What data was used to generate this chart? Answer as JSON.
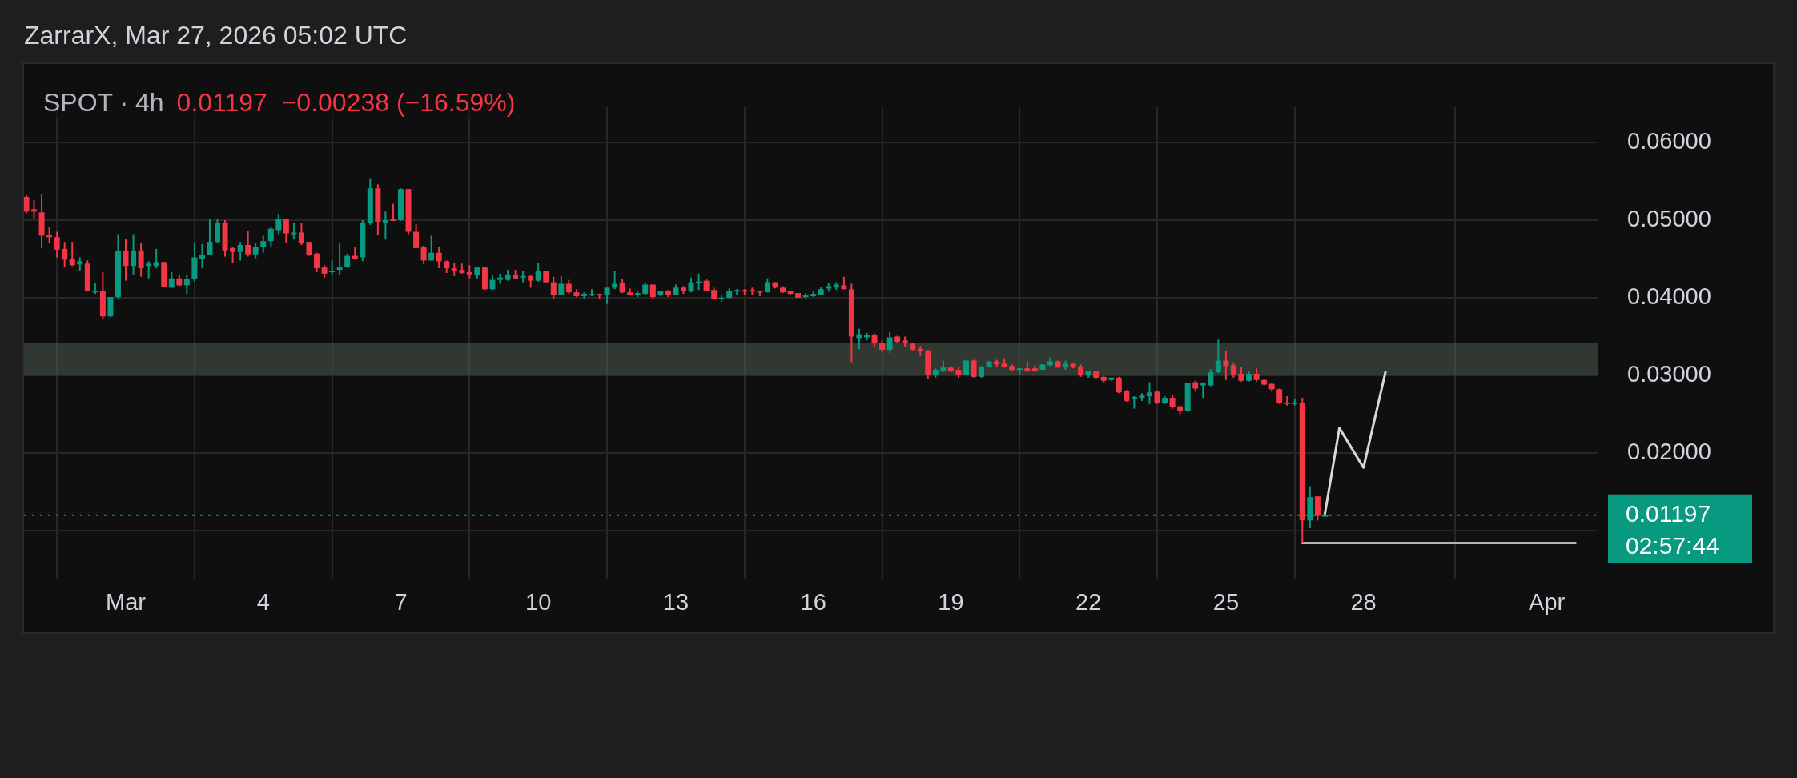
{
  "chart_data": {
    "type": "candlestick",
    "title": "SPOT · 4h",
    "subtitle": "0.01197  −0.00238 (−16.59%)",
    "annotations": [
      "ZarrarX, Mar 27, 2026 05:02 UTC",
      "02:57:44"
    ],
    "xlim": [
      "2026-02-26T18:45",
      "2026-04-02T03:00"
    ],
    "xticks": [
      {
        "value": "2026-03-01",
        "label": "Mar"
      },
      {
        "value": "2026-03-04",
        "label": "4"
      },
      {
        "value": "2026-03-07",
        "label": "7"
      },
      {
        "value": "2026-03-10",
        "label": "10"
      },
      {
        "value": "2026-03-13",
        "label": "13"
      },
      {
        "value": "2026-03-16",
        "label": "16"
      },
      {
        "value": "2026-03-19",
        "label": "19"
      },
      {
        "value": "2026-03-22",
        "label": "22"
      },
      {
        "value": "2026-03-25",
        "label": "25"
      },
      {
        "value": "2026-03-28",
        "label": "28"
      },
      {
        "value": "2026-04-01",
        "label": "Apr"
      }
    ],
    "ylim": [
      0.0038,
      0.0646
    ],
    "yticks": [
      {
        "value": 0.01,
        "label": null
      },
      {
        "value": 0.02,
        "label": "0.02000"
      },
      {
        "value": 0.03,
        "label": "0.03000"
      },
      {
        "value": 0.04,
        "label": "0.04000"
      },
      {
        "value": 0.05,
        "label": "0.05000"
      },
      {
        "value": 0.06,
        "label": "0.06000"
      }
    ],
    "grid": true,
    "ref_lines": [
      {
        "axis": "y",
        "value": 0.01197,
        "label": "0.01197",
        "color": "#089981",
        "line_style": "dotted"
      }
    ],
    "bands": [
      {
        "axis": "y",
        "from": 0.03,
        "to": 0.0342,
        "color": "#5a6b5a"
      }
    ],
    "series": [
      {
        "colors": [
          "#f23645",
          "#f23645",
          "#f23645",
          "#f23645",
          "#f23645",
          "#f23645",
          "#f23645",
          "#089981",
          "#f23645",
          "#089981",
          "#f23645",
          "#089981",
          "#089981",
          "#f23645",
          "#089981",
          "#f23645",
          "#089981",
          "#089981",
          "#f23645",
          "#089981",
          "#f23645",
          "#089981",
          "#089981",
          "#089981",
          "#089981",
          "#089981",
          "#f23645",
          "#f23645",
          "#089981",
          "#f23645",
          "#089981",
          "#089981",
          "#089981",
          "#089981",
          "#f23645",
          "#089981",
          "#f23645",
          "#f23645",
          "#f23645",
          "#f23645",
          "#089981",
          "#089981",
          "#089981",
          "#f23645",
          "#089981",
          "#089981",
          "#f23645",
          "#089981",
          "#f23645",
          "#089981",
          "#f23645",
          "#f23645",
          "#f23645",
          "#089981",
          "#f23645",
          "#f23645",
          "#f23645",
          "#f23645",
          "#f23645",
          "#089981",
          "#f23645",
          "#089981",
          "#089981",
          "#089981",
          "#f23645",
          "#089981",
          "#f23645",
          "#089981",
          "#f23645",
          "#f23645",
          "#089981",
          "#f23645",
          "#f23645",
          "#089981",
          "#089981",
          "#f23645",
          "#089981",
          "#089981",
          "#f23645",
          "#f23645",
          "#089981",
          "#089981",
          "#f23645",
          "#089981",
          "#f23645",
          "#089981",
          "#f23645",
          "#089981",
          "#089981",
          "#f23645",
          "#f23645",
          "#089981",
          "#089981",
          "#089981",
          "#f23645",
          "#f23645",
          "#f23645",
          "#089981",
          "#f23645",
          "#f23645",
          "#f23645",
          "#f23645",
          "#089981",
          "#089981",
          "#089981",
          "#089981",
          "#089981",
          "#f23645",
          "#f23645",
          "#089981",
          "#089981",
          "#f23645",
          "#f23645",
          "#089981",
          "#f23645",
          "#f23645",
          "#f23645",
          "#f23645",
          "#f23645",
          "#089981",
          "#089981",
          "#f23645",
          "#f23645",
          "#089981",
          "#f23645",
          "#089981",
          "#089981",
          "#f23645",
          "#f23645",
          "#f23645",
          "#089981",
          "#f23645",
          "#f23645",
          "#089981",
          "#089981",
          "#f23645",
          "#089981",
          "#f23645",
          "#f23645",
          "#089981",
          "#f23645",
          "#f23645",
          "#089981",
          "#f23645",
          "#f23645",
          "#089981",
          "#089981",
          "#089981",
          "#f23645",
          "#089981",
          "#f23645",
          "#f23645",
          "#089981",
          "#f23645",
          "#089981",
          "#089981",
          "#089981",
          "#f23645",
          "#f23645",
          "#f23645",
          "#089981",
          "#f23645",
          "#f23645",
          "#f23645",
          "#f23645",
          "#f23645",
          "#089981",
          "#f23645",
          "#089981",
          "#f23645",
          "#089981"
        ],
        "x": [
          "2026-02-26T20:00",
          "2026-02-27T00:00",
          "2026-02-27T04:00",
          "2026-02-27T08:00",
          "2026-02-27T12:00",
          "2026-02-27T16:00",
          "2026-02-27T20:00",
          "2026-02-28T00:00",
          "2026-02-28T04:00",
          "2026-02-28T08:00",
          "2026-02-28T12:00",
          "2026-02-28T16:00",
          "2026-02-28T20:00",
          "2026-03-01T00:00",
          "2026-03-01T04:00",
          "2026-03-01T08:00",
          "2026-03-01T12:00",
          "2026-03-01T16:00",
          "2026-03-01T20:00",
          "2026-03-02T00:00",
          "2026-03-02T04:00",
          "2026-03-02T08:00",
          "2026-03-02T12:00",
          "2026-03-02T16:00",
          "2026-03-02T20:00",
          "2026-03-03T00:00",
          "2026-03-03T04:00",
          "2026-03-03T08:00",
          "2026-03-03T12:00",
          "2026-03-03T16:00",
          "2026-03-03T20:00",
          "2026-03-04T00:00",
          "2026-03-04T04:00",
          "2026-03-04T08:00",
          "2026-03-04T12:00",
          "2026-03-04T16:00",
          "2026-03-04T20:00",
          "2026-03-05T00:00",
          "2026-03-05T04:00",
          "2026-03-05T08:00",
          "2026-03-05T12:00",
          "2026-03-05T16:00",
          "2026-03-05T20:00",
          "2026-03-06T00:00",
          "2026-03-06T04:00",
          "2026-03-06T08:00",
          "2026-03-06T12:00",
          "2026-03-06T16:00",
          "2026-03-06T20:00",
          "2026-03-07T00:00",
          "2026-03-07T04:00",
          "2026-03-07T08:00",
          "2026-03-07T12:00",
          "2026-03-07T16:00",
          "2026-03-07T20:00",
          "2026-03-08T00:00",
          "2026-03-08T04:00",
          "2026-03-08T08:00",
          "2026-03-08T12:00",
          "2026-03-08T16:00",
          "2026-03-08T20:00",
          "2026-03-09T00:00",
          "2026-03-09T04:00",
          "2026-03-09T08:00",
          "2026-03-09T12:00",
          "2026-03-09T16:00",
          "2026-03-09T20:00",
          "2026-03-10T00:00",
          "2026-03-10T04:00",
          "2026-03-10T08:00",
          "2026-03-10T12:00",
          "2026-03-10T16:00",
          "2026-03-10T20:00",
          "2026-03-11T00:00",
          "2026-03-11T04:00",
          "2026-03-11T08:00",
          "2026-03-11T12:00",
          "2026-03-11T16:00",
          "2026-03-11T20:00",
          "2026-03-12T00:00",
          "2026-03-12T04:00",
          "2026-03-12T08:00",
          "2026-03-12T12:00",
          "2026-03-12T16:00",
          "2026-03-12T20:00",
          "2026-03-13T00:00",
          "2026-03-13T04:00",
          "2026-03-13T08:00",
          "2026-03-13T12:00",
          "2026-03-13T16:00",
          "2026-03-13T20:00",
          "2026-03-14T00:00",
          "2026-03-14T04:00",
          "2026-03-14T08:00",
          "2026-03-14T12:00",
          "2026-03-14T16:00",
          "2026-03-14T20:00",
          "2026-03-15T00:00",
          "2026-03-15T04:00",
          "2026-03-15T08:00",
          "2026-03-15T12:00",
          "2026-03-15T16:00",
          "2026-03-15T20:00",
          "2026-03-16T00:00",
          "2026-03-16T04:00",
          "2026-03-16T08:00",
          "2026-03-16T12:00",
          "2026-03-16T16:00",
          "2026-03-16T20:00",
          "2026-03-17T00:00",
          "2026-03-17T04:00",
          "2026-03-17T08:00",
          "2026-03-17T12:00",
          "2026-03-17T16:00",
          "2026-03-17T20:00",
          "2026-03-18T00:00",
          "2026-03-18T04:00",
          "2026-03-18T08:00",
          "2026-03-18T12:00",
          "2026-03-18T16:00",
          "2026-03-18T20:00",
          "2026-03-19T00:00",
          "2026-03-19T04:00",
          "2026-03-19T08:00",
          "2026-03-19T12:00",
          "2026-03-19T16:00",
          "2026-03-19T20:00",
          "2026-03-20T00:00",
          "2026-03-20T04:00",
          "2026-03-20T08:00",
          "2026-03-20T12:00",
          "2026-03-20T16:00",
          "2026-03-20T20:00",
          "2026-03-21T00:00",
          "2026-03-21T04:00",
          "2026-03-21T08:00",
          "2026-03-21T12:00",
          "2026-03-21T16:00",
          "2026-03-21T20:00",
          "2026-03-22T00:00",
          "2026-03-22T04:00",
          "2026-03-22T08:00",
          "2026-03-22T12:00",
          "2026-03-22T16:00",
          "2026-03-22T20:00",
          "2026-03-23T00:00",
          "2026-03-23T04:00",
          "2026-03-23T08:00",
          "2026-03-23T12:00",
          "2026-03-23T16:00",
          "2026-03-23T20:00",
          "2026-03-24T00:00",
          "2026-03-24T04:00",
          "2026-03-24T08:00",
          "2026-03-24T12:00",
          "2026-03-24T16:00",
          "2026-03-24T20:00",
          "2026-03-25T00:00",
          "2026-03-25T04:00",
          "2026-03-25T08:00",
          "2026-03-25T12:00",
          "2026-03-25T16:00",
          "2026-03-25T20:00",
          "2026-03-26T00:00",
          "2026-03-26T04:00",
          "2026-03-26T08:00",
          "2026-03-26T12:00",
          "2026-03-26T16:00",
          "2026-03-26T20:00",
          "2026-03-27T00:00",
          "2026-03-27T04:00"
        ],
        "ohlc": [
          [
            0.053,
            0.0532,
            0.0509,
            0.0511
          ],
          [
            0.0514,
            0.0526,
            0.0501,
            0.0511
          ],
          [
            0.051,
            0.0534,
            0.0464,
            0.048
          ],
          [
            0.0481,
            0.0491,
            0.047,
            0.0478
          ],
          [
            0.0478,
            0.0485,
            0.0452,
            0.0462
          ],
          [
            0.0463,
            0.0472,
            0.044,
            0.0449
          ],
          [
            0.045,
            0.0472,
            0.0441,
            0.0442
          ],
          [
            0.0443,
            0.0452,
            0.0435,
            0.0447
          ],
          [
            0.0444,
            0.0448,
            0.0408,
            0.0409
          ],
          [
            0.0407,
            0.0419,
            0.0405,
            0.0409
          ],
          [
            0.0409,
            0.0433,
            0.0372,
            0.0376
          ],
          [
            0.0376,
            0.0401,
            0.0375,
            0.0401
          ],
          [
            0.0401,
            0.0482,
            0.0399,
            0.046
          ],
          [
            0.046,
            0.0476,
            0.0422,
            0.0441
          ],
          [
            0.0441,
            0.0482,
            0.0429,
            0.0461
          ],
          [
            0.0461,
            0.047,
            0.0427,
            0.0438
          ],
          [
            0.0441,
            0.0447,
            0.0425,
            0.0444
          ],
          [
            0.0441,
            0.0463,
            0.0438,
            0.0446
          ],
          [
            0.0446,
            0.0446,
            0.0414,
            0.0414
          ],
          [
            0.0413,
            0.0433,
            0.0413,
            0.0425
          ],
          [
            0.0425,
            0.043,
            0.0415,
            0.0416
          ],
          [
            0.0416,
            0.043,
            0.0405,
            0.0424
          ],
          [
            0.0424,
            0.047,
            0.0421,
            0.0452
          ],
          [
            0.045,
            0.0469,
            0.0438,
            0.0455
          ],
          [
            0.0455,
            0.0502,
            0.0455,
            0.0472
          ],
          [
            0.0472,
            0.0502,
            0.047,
            0.0497
          ],
          [
            0.0497,
            0.05,
            0.0453,
            0.0461
          ],
          [
            0.0464,
            0.0465,
            0.0445,
            0.0459
          ],
          [
            0.0459,
            0.0472,
            0.0448,
            0.0468
          ],
          [
            0.0468,
            0.0486,
            0.0453,
            0.0456
          ],
          [
            0.0456,
            0.047,
            0.0451,
            0.0465
          ],
          [
            0.0465,
            0.048,
            0.0458,
            0.0473
          ],
          [
            0.0473,
            0.0491,
            0.0466,
            0.0489
          ],
          [
            0.0487,
            0.0508,
            0.0482,
            0.0501
          ],
          [
            0.0501,
            0.0501,
            0.0471,
            0.0483
          ],
          [
            0.0482,
            0.0496,
            0.0475,
            0.0484
          ],
          [
            0.0484,
            0.0496,
            0.0468,
            0.0471
          ],
          [
            0.0472,
            0.0472,
            0.0454,
            0.0455
          ],
          [
            0.0457,
            0.0458,
            0.0433,
            0.0438
          ],
          [
            0.0439,
            0.0442,
            0.0426,
            0.0431
          ],
          [
            0.0433,
            0.0448,
            0.0429,
            0.0435
          ],
          [
            0.0436,
            0.047,
            0.0429,
            0.0439
          ],
          [
            0.0439,
            0.0457,
            0.0439,
            0.0454
          ],
          [
            0.0454,
            0.0465,
            0.0449,
            0.045
          ],
          [
            0.0452,
            0.05,
            0.0447,
            0.0497
          ],
          [
            0.0496,
            0.0553,
            0.0494,
            0.0541
          ],
          [
            0.0541,
            0.0546,
            0.0481,
            0.0498
          ],
          [
            0.0497,
            0.0511,
            0.0475,
            0.05
          ],
          [
            0.0501,
            0.0521,
            0.0499,
            0.05
          ],
          [
            0.05,
            0.0541,
            0.0499,
            0.054
          ],
          [
            0.054,
            0.054,
            0.0482,
            0.0485
          ],
          [
            0.0485,
            0.0495,
            0.0464,
            0.0464
          ],
          [
            0.0465,
            0.0467,
            0.0443,
            0.0448
          ],
          [
            0.0448,
            0.048,
            0.0448,
            0.0458
          ],
          [
            0.0458,
            0.0466,
            0.0438,
            0.0447
          ],
          [
            0.0447,
            0.0448,
            0.0432,
            0.0438
          ],
          [
            0.0438,
            0.0445,
            0.0428,
            0.0434
          ],
          [
            0.0436,
            0.0444,
            0.0431,
            0.0432
          ],
          [
            0.0433,
            0.0442,
            0.0425,
            0.043
          ],
          [
            0.0429,
            0.044,
            0.0425,
            0.0439
          ],
          [
            0.0439,
            0.044,
            0.041,
            0.0411
          ],
          [
            0.0411,
            0.0429,
            0.041,
            0.0423
          ],
          [
            0.0423,
            0.0431,
            0.0418,
            0.0426
          ],
          [
            0.0423,
            0.0436,
            0.0422,
            0.043
          ],
          [
            0.0429,
            0.0436,
            0.0424,
            0.0425
          ],
          [
            0.0426,
            0.0434,
            0.042,
            0.0428
          ],
          [
            0.0428,
            0.043,
            0.0413,
            0.0422
          ],
          [
            0.0422,
            0.0445,
            0.0421,
            0.0435
          ],
          [
            0.0435,
            0.0435,
            0.0419,
            0.042
          ],
          [
            0.042,
            0.0427,
            0.0398,
            0.0403
          ],
          [
            0.0403,
            0.0428,
            0.0403,
            0.0418
          ],
          [
            0.0418,
            0.0423,
            0.0405,
            0.0407
          ],
          [
            0.0407,
            0.0411,
            0.0401,
            0.0402
          ],
          [
            0.0402,
            0.0407,
            0.0399,
            0.0405
          ],
          [
            0.0403,
            0.0411,
            0.0402,
            0.0405
          ],
          [
            0.0405,
            0.0405,
            0.0399,
            0.0403
          ],
          [
            0.0403,
            0.0413,
            0.0392,
            0.0413
          ],
          [
            0.0413,
            0.0435,
            0.0411,
            0.0418
          ],
          [
            0.0419,
            0.0424,
            0.0406,
            0.0407
          ],
          [
            0.0407,
            0.0412,
            0.0403,
            0.0403
          ],
          [
            0.0403,
            0.0408,
            0.0401,
            0.0406
          ],
          [
            0.0405,
            0.042,
            0.0404,
            0.0417
          ],
          [
            0.0417,
            0.0417,
            0.0399,
            0.0401
          ],
          [
            0.0403,
            0.0409,
            0.0402,
            0.0409
          ],
          [
            0.0409,
            0.041,
            0.0401,
            0.0403
          ],
          [
            0.0403,
            0.0417,
            0.0403,
            0.0413
          ],
          [
            0.0413,
            0.0415,
            0.0405,
            0.0408
          ],
          [
            0.0408,
            0.0426,
            0.0407,
            0.042
          ],
          [
            0.042,
            0.0431,
            0.041,
            0.0421
          ],
          [
            0.0422,
            0.0424,
            0.0409,
            0.0409
          ],
          [
            0.041,
            0.0413,
            0.0397,
            0.0398
          ],
          [
            0.0398,
            0.0403,
            0.0395,
            0.04
          ],
          [
            0.04,
            0.0412,
            0.0399,
            0.0409
          ],
          [
            0.0409,
            0.0411,
            0.0404,
            0.041
          ],
          [
            0.041,
            0.0411,
            0.0404,
            0.0408
          ],
          [
            0.041,
            0.0413,
            0.0404,
            0.0408
          ],
          [
            0.0409,
            0.0409,
            0.0402,
            0.0407
          ],
          [
            0.0407,
            0.0425,
            0.0407,
            0.042
          ],
          [
            0.042,
            0.042,
            0.0412,
            0.0413
          ],
          [
            0.0413,
            0.0415,
            0.0406,
            0.0407
          ],
          [
            0.0409,
            0.0409,
            0.0403,
            0.0405
          ],
          [
            0.0406,
            0.0406,
            0.04,
            0.04
          ],
          [
            0.0401,
            0.0406,
            0.0399,
            0.0403
          ],
          [
            0.0402,
            0.0408,
            0.0401,
            0.0405
          ],
          [
            0.0404,
            0.0414,
            0.0404,
            0.0411
          ],
          [
            0.0412,
            0.0419,
            0.0408,
            0.0415
          ],
          [
            0.0413,
            0.042,
            0.041,
            0.0417
          ],
          [
            0.0416,
            0.0427,
            0.0411,
            0.0411
          ],
          [
            0.0411,
            0.0418,
            0.0317,
            0.035
          ],
          [
            0.0348,
            0.036,
            0.0334,
            0.0353
          ],
          [
            0.0349,
            0.0355,
            0.0345,
            0.0352
          ],
          [
            0.0352,
            0.0354,
            0.0337,
            0.0341
          ],
          [
            0.0342,
            0.0345,
            0.033,
            0.0333
          ],
          [
            0.0333,
            0.0356,
            0.0329,
            0.0349
          ],
          [
            0.035,
            0.0351,
            0.0341,
            0.0343
          ],
          [
            0.0345,
            0.035,
            0.0336,
            0.0341
          ],
          [
            0.0341,
            0.0342,
            0.0332,
            0.0333
          ],
          [
            0.0334,
            0.0338,
            0.0325,
            0.0332
          ],
          [
            0.0332,
            0.0333,
            0.0295,
            0.03
          ],
          [
            0.03,
            0.0309,
            0.0297,
            0.0307
          ],
          [
            0.0305,
            0.0319,
            0.0304,
            0.031
          ],
          [
            0.031,
            0.031,
            0.0304,
            0.0305
          ],
          [
            0.0307,
            0.0311,
            0.0297,
            0.0301
          ],
          [
            0.0301,
            0.032,
            0.03,
            0.0319
          ],
          [
            0.0319,
            0.032,
            0.0297,
            0.0298
          ],
          [
            0.0298,
            0.0312,
            0.0297,
            0.0311
          ],
          [
            0.0311,
            0.0318,
            0.031,
            0.0318
          ],
          [
            0.0318,
            0.032,
            0.031,
            0.0314
          ],
          [
            0.0315,
            0.0322,
            0.031,
            0.0311
          ],
          [
            0.0312,
            0.0314,
            0.0306,
            0.0307
          ],
          [
            0.0307,
            0.0309,
            0.0301,
            0.0309
          ],
          [
            0.0309,
            0.0318,
            0.0305,
            0.0305
          ],
          [
            0.0309,
            0.0313,
            0.0305,
            0.0305
          ],
          [
            0.0307,
            0.0314,
            0.0307,
            0.0314
          ],
          [
            0.0313,
            0.0323,
            0.0312,
            0.0318
          ],
          [
            0.0318,
            0.0319,
            0.031,
            0.031
          ],
          [
            0.031,
            0.0319,
            0.0307,
            0.0315
          ],
          [
            0.0315,
            0.0315,
            0.0309,
            0.031
          ],
          [
            0.0311,
            0.0314,
            0.0298,
            0.03
          ],
          [
            0.03,
            0.0306,
            0.0297,
            0.0305
          ],
          [
            0.0305,
            0.0305,
            0.0296,
            0.0297
          ],
          [
            0.0298,
            0.0301,
            0.029,
            0.0293
          ],
          [
            0.0294,
            0.0297,
            0.0293,
            0.0297
          ],
          [
            0.0297,
            0.0298,
            0.0277,
            0.0278
          ],
          [
            0.028,
            0.0281,
            0.0266,
            0.0267
          ],
          [
            0.027,
            0.0273,
            0.0257,
            0.0272
          ],
          [
            0.0271,
            0.0277,
            0.0267,
            0.0274
          ],
          [
            0.0273,
            0.0291,
            0.0263,
            0.0278
          ],
          [
            0.0279,
            0.028,
            0.0263,
            0.0264
          ],
          [
            0.0264,
            0.0273,
            0.0263,
            0.0271
          ],
          [
            0.0271,
            0.0274,
            0.0257,
            0.0259
          ],
          [
            0.026,
            0.0261,
            0.025,
            0.0254
          ],
          [
            0.0254,
            0.029,
            0.0253,
            0.029
          ],
          [
            0.0291,
            0.0293,
            0.0279,
            0.0283
          ],
          [
            0.0287,
            0.0291,
            0.0271,
            0.029
          ],
          [
            0.0287,
            0.0308,
            0.0286,
            0.0304
          ],
          [
            0.0304,
            0.0346,
            0.0303,
            0.0319
          ],
          [
            0.0319,
            0.0332,
            0.0294,
            0.0312
          ],
          [
            0.0313,
            0.0316,
            0.0297,
            0.0301
          ],
          [
            0.0302,
            0.0311,
            0.0292,
            0.0293
          ],
          [
            0.0293,
            0.0305,
            0.0292,
            0.0302
          ],
          [
            0.0302,
            0.0309,
            0.0292,
            0.0294
          ],
          [
            0.0294,
            0.0295,
            0.0287,
            0.0288
          ],
          [
            0.0289,
            0.029,
            0.0279,
            0.0282
          ],
          [
            0.0282,
            0.0283,
            0.0263,
            0.0264
          ],
          [
            0.0265,
            0.0273,
            0.0261,
            0.0263
          ],
          [
            0.0263,
            0.027,
            0.0261,
            0.0265
          ],
          [
            0.0264,
            0.0271,
            0.0084,
            0.0113
          ],
          [
            0.0113,
            0.0157,
            0.0103,
            0.0143
          ],
          [
            0.0144,
            0.0144,
            0.0113,
            0.0119
          ],
          [
            0.0119,
            0.0121,
            0.0118,
            0.01197
          ]
        ]
      },
      {
        "type": "line",
        "color": "#d8d8d8",
        "x": [
          "2026-03-27T03:42",
          "2026-03-27T11:24",
          "2026-03-28T00:00",
          "2026-03-28T11:30"
        ],
        "values": [
          0.012,
          0.0232,
          0.0181,
          0.0304
        ]
      },
      {
        "type": "line",
        "color": "#b2b5be",
        "x": [
          "2026-03-26T16:00",
          "2026-04-01T15:00"
        ],
        "values": [
          0.0084,
          0.0084
        ]
      }
    ]
  }
}
